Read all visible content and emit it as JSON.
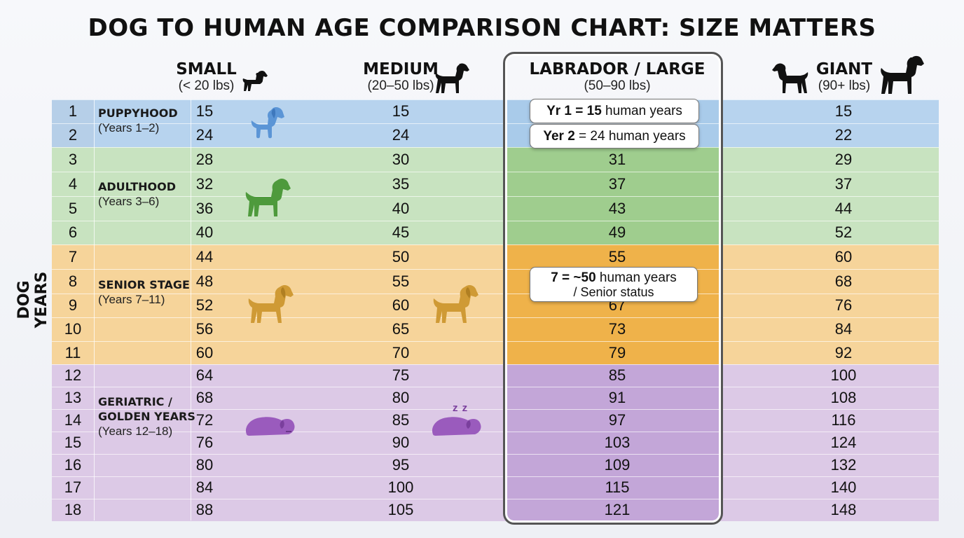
{
  "title": "DOG TO HUMAN AGE COMPARISON CHART: SIZE MATTERS",
  "colors": {
    "puppyhood": "#b7d3ee",
    "puppyhood_hi": "#a9cbea",
    "adulthood": "#c8e3c0",
    "adulthood_hi": "#9fcd8e",
    "senior": "#f6d49a",
    "senior_hi": "#efb24a",
    "geriatric": "#dcc9e6",
    "geriatric_hi": "#c3a6d8",
    "year_col": "#b6cfe8"
  },
  "chart_data": {
    "type": "table",
    "title": "DOG TO HUMAN AGE COMPARISON CHART: SIZE MATTERS",
    "ylabel": "DOG YEARS",
    "years": [
      "1",
      "2",
      "3",
      "4",
      "5",
      "6",
      "7",
      "8",
      "9",
      "10",
      "11",
      "12",
      "13",
      "14",
      "15",
      "16",
      "17",
      "18"
    ],
    "columns": [
      {
        "name": "SMALL",
        "weight": "(< 20 lbs)",
        "values": [
          "15",
          "24",
          "28",
          "32",
          "36",
          "40",
          "44",
          "48",
          "52",
          "56",
          "60",
          "64",
          "68",
          "72",
          "76",
          "80",
          "84",
          "88"
        ]
      },
      {
        "name": "MEDIUM",
        "weight": "(20–50 lbs)",
        "values": [
          "15",
          "24",
          "30",
          "35",
          "40",
          "45",
          "50",
          "55",
          "60",
          "65",
          "70",
          "75",
          "80",
          "85",
          "90",
          "95",
          "100",
          "105"
        ]
      },
      {
        "name": "LABRADOR / LARGE",
        "weight": "(50–90 lbs)",
        "values": [
          "",
          "",
          "31",
          "37",
          "43",
          "49",
          "55",
          "",
          "67",
          "73",
          "79",
          "85",
          "91",
          "97",
          "103",
          "109",
          "115",
          "121"
        ]
      },
      {
        "name": "GIANT",
        "weight": "(90+ lbs)",
        "values": [
          "15",
          "22",
          "29",
          "37",
          "44",
          "52",
          "60",
          "68",
          "76",
          "84",
          "92",
          "100",
          "108",
          "116",
          "124",
          "132",
          "140",
          "148"
        ]
      }
    ],
    "stages": [
      {
        "name": "PUPPYHOOD",
        "range": "(Years 1–2)",
        "start": 1,
        "end": 2,
        "icon": "puppy-icon"
      },
      {
        "name": "ADULTHOOD",
        "range": "(Years 3–6)",
        "start": 3,
        "end": 6,
        "icon": "standing-dog-icon"
      },
      {
        "name": "SENIOR STAGE",
        "range": "(Years 7–11)",
        "start": 7,
        "end": 11,
        "icon": "senior-dog-icon"
      },
      {
        "name": "GERIATRIC /",
        "name2": "GOLDEN YEARS",
        "range": "(Years 12–18)",
        "start": 12,
        "end": 18,
        "icon": "sleeping-dog-icon"
      }
    ],
    "callouts": [
      {
        "bold": "Yr 1 = 15",
        "rest": " human years"
      },
      {
        "bold": "Yer 2",
        "rest": " = 24 human years"
      },
      {
        "bold": "7 = ~50",
        "rest": " human years",
        "line2": "/ Senior status"
      }
    ],
    "sleep_mark": "z z"
  }
}
